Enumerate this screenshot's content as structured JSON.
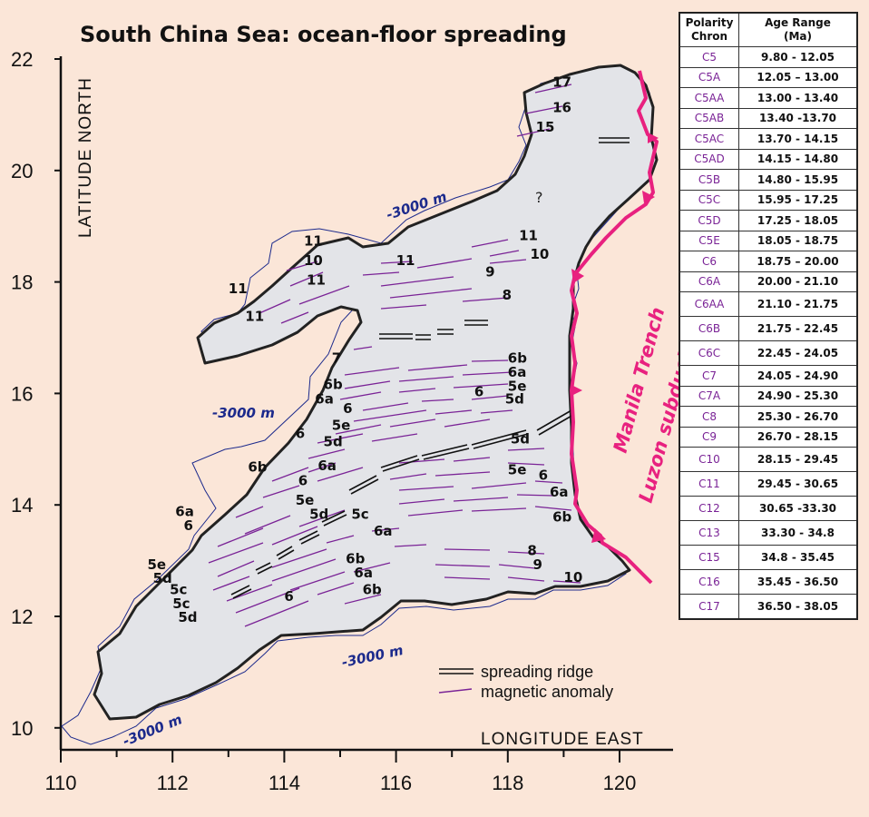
{
  "title": "South China Sea: ocean-floor spreading",
  "axes": {
    "y_label": "LATITUDE  NORTH",
    "x_label": "LONGITUDE  EAST",
    "y_ticks": [
      "22",
      "20",
      "18",
      "16",
      "14",
      "12",
      "10"
    ],
    "x_ticks": [
      "110",
      "112",
      "114",
      "116",
      "118",
      "120"
    ]
  },
  "contour_label": "-3000 m",
  "unknown_marker": "?",
  "trench_labels": {
    "line1": "Manila Trench",
    "line2": "Luzon subduction zone"
  },
  "legend": {
    "ridge": "spreading ridge",
    "anomaly": "magnetic anomaly"
  },
  "anomaly_labels": [
    {
      "t": "17",
      "lon": 118.8,
      "lat": 21.5
    },
    {
      "t": "16",
      "lon": 118.8,
      "lat": 21.05
    },
    {
      "t": "15",
      "lon": 118.5,
      "lat": 20.7
    },
    {
      "t": "11",
      "lon": 114.35,
      "lat": 18.65
    },
    {
      "t": "10",
      "lon": 114.35,
      "lat": 18.3
    },
    {
      "t": "11",
      "lon": 114.4,
      "lat": 17.95
    },
    {
      "t": "11",
      "lon": 113.0,
      "lat": 17.8
    },
    {
      "t": "11",
      "lon": 113.3,
      "lat": 17.3
    },
    {
      "t": "11",
      "lon": 116.0,
      "lat": 18.3
    },
    {
      "t": "11",
      "lon": 118.2,
      "lat": 18.75
    },
    {
      "t": "10",
      "lon": 118.4,
      "lat": 18.42
    },
    {
      "t": "9",
      "lon": 117.6,
      "lat": 18.1
    },
    {
      "t": "8",
      "lon": 117.9,
      "lat": 17.68
    },
    {
      "t": "7",
      "lon": 114.85,
      "lat": 16.55
    },
    {
      "t": "6b",
      "lon": 118.0,
      "lat": 16.55
    },
    {
      "t": "6a",
      "lon": 118.0,
      "lat": 16.3
    },
    {
      "t": "5e",
      "lon": 118.0,
      "lat": 16.05
    },
    {
      "t": "5d",
      "lon": 117.95,
      "lat": 15.82
    },
    {
      "t": "6",
      "lon": 117.4,
      "lat": 15.95
    },
    {
      "t": "6b",
      "lon": 114.7,
      "lat": 16.08
    },
    {
      "t": "6a",
      "lon": 114.55,
      "lat": 15.82
    },
    {
      "t": "6",
      "lon": 115.05,
      "lat": 15.65
    },
    {
      "t": "5e",
      "lon": 114.85,
      "lat": 15.35
    },
    {
      "t": "6",
      "lon": 114.2,
      "lat": 15.2
    },
    {
      "t": "5d",
      "lon": 114.7,
      "lat": 15.05
    },
    {
      "t": "5d",
      "lon": 118.05,
      "lat": 15.1
    },
    {
      "t": "6b",
      "lon": 113.35,
      "lat": 14.6
    },
    {
      "t": "6a",
      "lon": 114.6,
      "lat": 14.62
    },
    {
      "t": "6",
      "lon": 114.25,
      "lat": 14.35
    },
    {
      "t": "5e",
      "lon": 118.0,
      "lat": 14.55
    },
    {
      "t": "6",
      "lon": 118.55,
      "lat": 14.45
    },
    {
      "t": "6a",
      "lon": 118.75,
      "lat": 14.15
    },
    {
      "t": "5e",
      "lon": 114.2,
      "lat": 14.0
    },
    {
      "t": "5d",
      "lon": 114.45,
      "lat": 13.75
    },
    {
      "t": "5c",
      "lon": 115.2,
      "lat": 13.75
    },
    {
      "t": "6b",
      "lon": 118.8,
      "lat": 13.7
    },
    {
      "t": "6a",
      "lon": 112.05,
      "lat": 13.8
    },
    {
      "t": "6",
      "lon": 112.2,
      "lat": 13.55
    },
    {
      "t": "6a",
      "lon": 115.6,
      "lat": 13.45
    },
    {
      "t": "8",
      "lon": 118.35,
      "lat": 13.1
    },
    {
      "t": "6b",
      "lon": 115.1,
      "lat": 12.95
    },
    {
      "t": "9",
      "lon": 118.45,
      "lat": 12.85
    },
    {
      "t": "5e",
      "lon": 111.55,
      "lat": 12.85
    },
    {
      "t": "6a",
      "lon": 115.25,
      "lat": 12.7
    },
    {
      "t": "10",
      "lon": 119.0,
      "lat": 12.62
    },
    {
      "t": "5d",
      "lon": 111.65,
      "lat": 12.6
    },
    {
      "t": "6b",
      "lon": 115.4,
      "lat": 12.4
    },
    {
      "t": "5c",
      "lon": 111.95,
      "lat": 12.4
    },
    {
      "t": "6",
      "lon": 114.0,
      "lat": 12.28
    },
    {
      "t": "5c",
      "lon": 112.0,
      "lat": 12.15
    },
    {
      "t": "5d",
      "lon": 112.1,
      "lat": 11.9
    }
  ],
  "table": {
    "headers": [
      "Polarity\nChron",
      "Age Range\n(Ma)"
    ],
    "rows": [
      {
        "chron": "C5",
        "age": "9.80 - 12.05"
      },
      {
        "chron": "C5A",
        "age": "12.05 – 13.00"
      },
      {
        "chron": "C5AA",
        "age": "13.00 - 13.40"
      },
      {
        "chron": "C5AB",
        "age": "13.40 -13.70"
      },
      {
        "chron": "C5AC",
        "age": "13.70 - 14.15"
      },
      {
        "chron": "C5AD",
        "age": "14.15 - 14.80"
      },
      {
        "chron": "C5B",
        "age": "14.80 - 15.95"
      },
      {
        "chron": "C5C",
        "age": "15.95 - 17.25"
      },
      {
        "chron": "C5D",
        "age": "17.25 - 18.05"
      },
      {
        "chron": "C5E",
        "age": "18.05 - 18.75"
      },
      {
        "chron": "C6",
        "age": "18.75 – 20.00"
      },
      {
        "chron": "C6A",
        "age": "20.00 - 21.10"
      },
      {
        "chron": "C6AA",
        "age": "21.10 - 21.75"
      },
      {
        "chron": "C6B",
        "age": "21.75 - 22.45"
      },
      {
        "chron": "C6C",
        "age": "22.45 - 24.05"
      },
      {
        "chron": "C7",
        "age": "24.05 - 24.90"
      },
      {
        "chron": "C7A",
        "age": "24.90 - 25.30"
      },
      {
        "chron": "C8",
        "age": "25.30 - 26.70"
      },
      {
        "chron": "C9",
        "age": "26.70 - 28.15"
      },
      {
        "chron": "C10",
        "age": "28.15 - 29.45"
      },
      {
        "chron": "C11",
        "age": "29.45 - 30.65"
      },
      {
        "chron": "C12",
        "age": "30.65 -33.30"
      },
      {
        "chron": "C13",
        "age": "33.30 - 34.8"
      },
      {
        "chron": "C15",
        "age": "34.8 - 35.45"
      },
      {
        "chron": "C16",
        "age": "35.45 - 36.50"
      },
      {
        "chron": "C17",
        "age": "36.50 - 38.05"
      }
    ]
  },
  "colors": {
    "background": "#fbe6d8",
    "basin": "#e3e4e8",
    "anomaly": "#7a2396",
    "contour": "#1c2a8c",
    "trench": "#e8217f"
  }
}
